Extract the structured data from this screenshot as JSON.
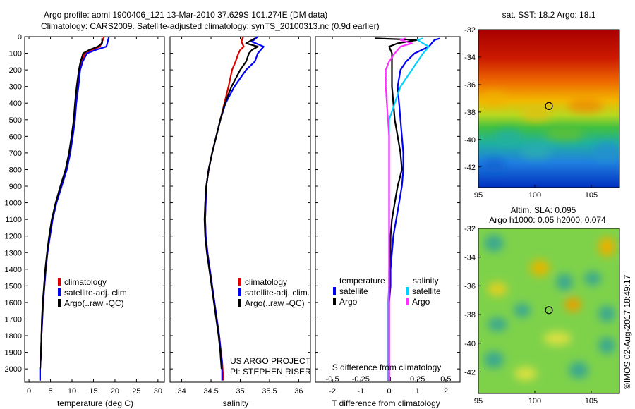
{
  "header": {
    "title_line1": "Argo profile: aoml 1900406_121 13-Mar-2010 37.629S 101.274E (DM data)",
    "title_line2": "Climatology: CARS2009. Satellite-adjusted climatology: synTS_20100313.nc (0.9d earlier)"
  },
  "credit": {
    "project": "US ARGO PROJECT",
    "pi": "PI: STEPHEN RISER",
    "footer": "©IMOS 02-Aug-2017 18:49:17"
  },
  "colors": {
    "climatology": "#e00000",
    "satellite": "#0000ff",
    "argo": "#000000",
    "sat_sal": "#00d0ff",
    "argo_sal": "#ff30ff"
  },
  "chart_data": [
    {
      "type": "line",
      "name": "temperature-profile",
      "xlabel": "temperature (deg C)",
      "ylabel": "",
      "xlim": [
        -1,
        31.5
      ],
      "ylim": [
        2080,
        0
      ],
      "y_reversed": true,
      "xticks": [
        0,
        5,
        10,
        15,
        20,
        25,
        30
      ],
      "yticks": [
        0,
        100,
        200,
        300,
        400,
        500,
        600,
        700,
        800,
        900,
        1000,
        1100,
        1200,
        1300,
        1400,
        1500,
        1600,
        1700,
        1800,
        1900,
        2000
      ],
      "legend": [
        "climatology",
        "satellite-adj. clim.",
        "Argo(..raw -QC)"
      ],
      "series": [
        {
          "name": "climatology",
          "color": "#e00000",
          "x": [
            17.5,
            17.0,
            16.5,
            14.5,
            13.0,
            12.2,
            11.6,
            11.2,
            10.8,
            10.5,
            10.0,
            9.4,
            8.6,
            7.4,
            6.3,
            5.4,
            4.8,
            4.3,
            3.9,
            3.6,
            3.3,
            3.1,
            2.9,
            2.8,
            2.7,
            2.6,
            2.6
          ],
          "y": [
            0,
            30,
            60,
            80,
            100,
            150,
            200,
            300,
            400,
            500,
            600,
            700,
            800,
            900,
            1000,
            1100,
            1200,
            1300,
            1400,
            1500,
            1600,
            1700,
            1800,
            1900,
            1950,
            2000,
            2070
          ]
        },
        {
          "name": "satellite-adj. clim.",
          "color": "#0000ff",
          "x": [
            18.6,
            18.3,
            18.0,
            15.5,
            13.5,
            12.5,
            11.9,
            11.5,
            11.0,
            10.7,
            10.2,
            9.6,
            8.8,
            7.6,
            6.4,
            5.5,
            4.9,
            4.3,
            3.9,
            3.6,
            3.3,
            3.1,
            2.9,
            2.8,
            2.7,
            2.6,
            2.6
          ],
          "y": [
            0,
            30,
            60,
            80,
            100,
            150,
            200,
            300,
            400,
            500,
            600,
            700,
            800,
            900,
            1000,
            1100,
            1200,
            1300,
            1400,
            1500,
            1600,
            1700,
            1800,
            1900,
            1950,
            2000,
            2070
          ]
        },
        {
          "name": "Argo(..raw -QC)",
          "color": "#000000",
          "x": [
            17.0,
            17.0,
            16.0,
            14.0,
            12.6,
            12.0,
            11.6,
            11.1,
            10.7,
            10.4,
            9.9,
            9.3,
            8.5,
            7.3,
            6.2,
            5.3,
            4.7,
            4.2,
            3.8,
            3.5,
            3.2,
            3.0,
            2.9,
            2.8,
            2.7,
            2.6
          ],
          "y": [
            10,
            40,
            60,
            80,
            100,
            150,
            200,
            300,
            400,
            500,
            600,
            700,
            800,
            900,
            1000,
            1100,
            1200,
            1300,
            1400,
            1500,
            1600,
            1700,
            1800,
            1900,
            1950,
            2000
          ]
        }
      ]
    },
    {
      "type": "line",
      "name": "salinity-profile",
      "xlabel": "salinity",
      "ylabel": "",
      "xlim": [
        33.8,
        36.2
      ],
      "ylim": [
        2080,
        0
      ],
      "y_reversed": true,
      "xticks": [
        34,
        34.5,
        35,
        35.5,
        36
      ],
      "xtick_labels": [
        "34",
        "34.5",
        "35",
        "35.5",
        "36"
      ],
      "legend": [
        "climatology",
        "satellite-adj. clim.",
        "Argo(..raw -QC)"
      ],
      "series": [
        {
          "name": "climatology",
          "color": "#e00000",
          "x": [
            35.05,
            35.02,
            35.06,
            35.0,
            34.97,
            34.92,
            34.86,
            34.8,
            34.73,
            34.66,
            34.59,
            34.52,
            34.46,
            34.42,
            34.41,
            34.4,
            34.41,
            34.44,
            34.48,
            34.52,
            34.56,
            34.6,
            34.64,
            34.67,
            34.69,
            34.7,
            34.71
          ],
          "y": [
            0,
            30,
            60,
            80,
            100,
            150,
            200,
            300,
            400,
            500,
            600,
            700,
            800,
            900,
            1000,
            1100,
            1200,
            1300,
            1400,
            1500,
            1600,
            1700,
            1800,
            1900,
            1950,
            2000,
            2070
          ]
        },
        {
          "name": "satellite-adj. clim.",
          "color": "#0000ff",
          "x": [
            35.3,
            35.2,
            35.4,
            35.35,
            35.3,
            35.25,
            35.1,
            34.9,
            34.75,
            34.66,
            34.59,
            34.52,
            34.46,
            34.42,
            34.41,
            34.4,
            34.41,
            34.44,
            34.48,
            34.52,
            34.56,
            34.6,
            34.64,
            34.67,
            34.68,
            34.69,
            34.69
          ],
          "y": [
            0,
            30,
            60,
            80,
            100,
            150,
            200,
            300,
            400,
            500,
            600,
            700,
            800,
            900,
            1000,
            1100,
            1200,
            1300,
            1400,
            1500,
            1600,
            1700,
            1800,
            1900,
            1950,
            2000,
            2070
          ]
        },
        {
          "name": "Argo(..raw -QC)",
          "color": "#000000",
          "x": [
            35.25,
            35.1,
            35.3,
            35.2,
            35.15,
            35.1,
            35.0,
            34.85,
            34.74,
            34.66,
            34.59,
            34.52,
            34.46,
            34.42,
            34.4,
            34.39,
            34.4,
            34.43,
            34.47,
            34.51,
            34.55,
            34.59,
            34.63,
            34.66,
            34.67,
            34.68
          ],
          "y": [
            10,
            40,
            60,
            80,
            100,
            150,
            200,
            300,
            400,
            500,
            600,
            700,
            800,
            900,
            1000,
            1100,
            1200,
            1300,
            1400,
            1500,
            1600,
            1700,
            1800,
            1900,
            1950,
            2000
          ]
        }
      ]
    },
    {
      "type": "line",
      "name": "difference-profile",
      "xlabel": "T difference from climatology",
      "xlabel_top": "S difference from climatology",
      "xlim": [
        -2.6,
        2.5
      ],
      "ylim": [
        2080,
        0
      ],
      "y_reversed": true,
      "xticks": [
        -2,
        -1,
        0,
        1,
        2
      ],
      "top_ticks": [
        -0.5,
        -0.25,
        0,
        0.25,
        0.5
      ],
      "top_tick_labels": [
        "-0.5",
        "-0.25",
        "0",
        "0.25",
        "0.5"
      ],
      "legend_titles": [
        "temperature",
        "salinity"
      ],
      "legend": [
        "satellite",
        "Argo",
        "satellite",
        "Argo"
      ],
      "series": [
        {
          "name": "temperature satellite",
          "color": "#0000ff",
          "x": [
            1.8,
            1.6,
            1.5,
            1.4,
            0.9,
            0.6,
            0.4,
            0.3,
            0.35,
            0.4,
            0.45,
            0.5,
            0.5,
            0.45,
            0.35,
            0.25,
            0.15,
            0.1,
            0.05,
            0.05,
            0.0,
            0.0,
            0.0,
            0.0,
            0.0,
            0.0
          ],
          "y": [
            10,
            20,
            40,
            60,
            100,
            150,
            200,
            300,
            400,
            500,
            600,
            700,
            800,
            900,
            1000,
            1100,
            1200,
            1300,
            1400,
            1500,
            1600,
            1700,
            1800,
            1900,
            2000,
            2070
          ]
        },
        {
          "name": "temperature Argo",
          "color": "#000000",
          "x": [
            -0.5,
            1.0,
            0.3,
            0.0,
            0.1,
            0.1,
            0.1,
            0.1,
            0.15,
            0.2,
            0.3,
            0.4,
            0.45,
            0.3,
            0.2,
            0.1,
            0.05,
            0.05,
            0.0,
            0.0,
            0.0,
            0.0,
            0.0,
            0.0,
            0.0,
            0.0
          ],
          "y": [
            10,
            20,
            40,
            60,
            100,
            150,
            200,
            300,
            400,
            500,
            600,
            700,
            800,
            900,
            1000,
            1100,
            1200,
            1300,
            1400,
            1500,
            1600,
            1700,
            1800,
            1900,
            2000,
            2070
          ]
        },
        {
          "name": "salinity satellite",
          "color": "#00d0ff",
          "x": [
            0.3,
            0.25,
            0.3,
            0.35,
            0.3,
            0.25,
            0.2,
            0.1,
            0.05,
            0.0,
            0.0,
            0.0,
            0.0,
            0.0,
            0.0,
            0.0,
            0.0,
            0.0,
            0.0,
            0.0,
            -0.01,
            -0.01,
            -0.01,
            -0.01,
            -0.01,
            -0.01
          ],
          "y": [
            10,
            20,
            40,
            60,
            100,
            150,
            200,
            300,
            400,
            500,
            600,
            700,
            800,
            900,
            1000,
            1100,
            1200,
            1300,
            1400,
            1500,
            1600,
            1700,
            1800,
            1900,
            2000,
            2070
          ]
        },
        {
          "name": "salinity Argo",
          "color": "#ff30ff",
          "x": [
            0.15,
            0.1,
            0.2,
            0.1,
            0.05,
            0.0,
            -0.03,
            -0.03,
            -0.02,
            -0.01,
            0.0,
            0.0,
            0.0,
            0.0,
            0.0,
            0.0,
            0.0,
            0.0,
            0.0,
            0.0,
            0.0,
            0.0,
            0.0,
            0.0,
            0.0,
            0.0
          ],
          "y": [
            10,
            20,
            40,
            60,
            100,
            150,
            200,
            300,
            400,
            500,
            600,
            700,
            800,
            900,
            1000,
            1100,
            1200,
            1300,
            1400,
            1500,
            1600,
            1700,
            1800,
            1900,
            2000,
            2070
          ]
        }
      ]
    },
    {
      "type": "heatmap",
      "name": "sst-map",
      "title": "sat. SST: 18.2  Argo: 18.1",
      "xlim": [
        95,
        107.5
      ],
      "ylim": [
        -43.5,
        -32
      ],
      "xticks": [
        95,
        100,
        105
      ],
      "yticks": [
        -32,
        -34,
        -36,
        -38,
        -40,
        -42
      ],
      "marker": {
        "lon": 101.274,
        "lat": -37.629
      }
    },
    {
      "type": "heatmap",
      "name": "sla-map",
      "title": "Altim. SLA: 0.095",
      "subtitle": "Argo h1000: 0.05 h2000: 0.074",
      "xlim": [
        95,
        107.5
      ],
      "ylim": [
        -43.5,
        -32
      ],
      "xticks": [
        95,
        100,
        105
      ],
      "yticks": [
        -32,
        -34,
        -36,
        -38,
        -40,
        -42
      ],
      "marker": {
        "lon": 101.274,
        "lat": -37.629
      }
    }
  ]
}
